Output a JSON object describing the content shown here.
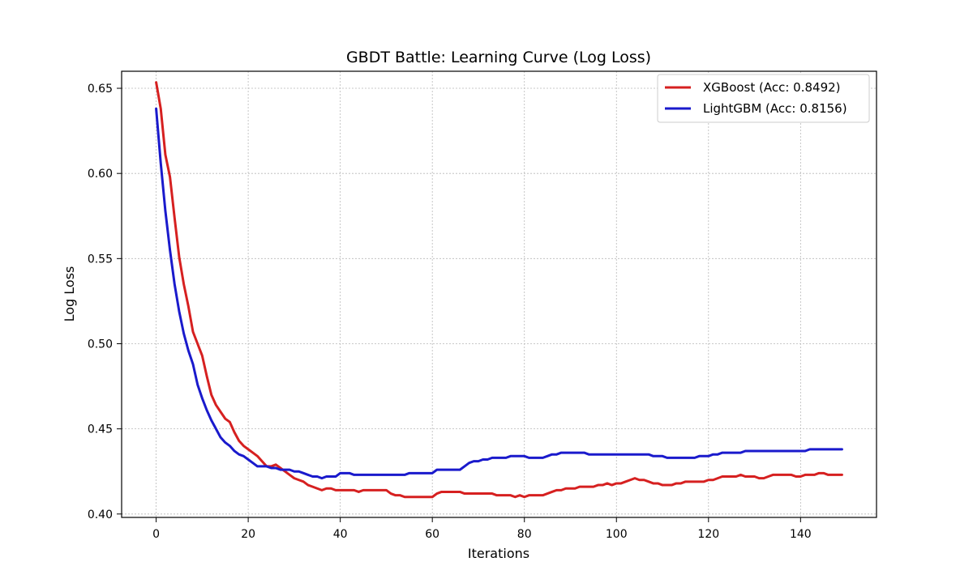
{
  "chart_data": {
    "type": "line",
    "title": "GBDT Battle: Learning Curve (Log Loss)",
    "xlabel": "Iterations",
    "ylabel": "Log Loss",
    "xlim": [
      -7.5,
      156.5
    ],
    "ylim": [
      0.398,
      0.66
    ],
    "xticks": [
      0,
      20,
      40,
      60,
      80,
      100,
      120,
      140
    ],
    "xtick_labels": [
      "0",
      "20",
      "40",
      "60",
      "80",
      "100",
      "120",
      "140"
    ],
    "yticks": [
      0.4,
      0.45,
      0.5,
      0.55,
      0.6,
      0.65
    ],
    "ytick_labels": [
      "0.40",
      "0.45",
      "0.50",
      "0.55",
      "0.60",
      "0.65"
    ],
    "grid": true,
    "legend_position": "top-right",
    "series": [
      {
        "name": "XGBoost (Acc: 0.8492)",
        "color": "#d62020",
        "x": [
          0,
          1,
          2,
          3,
          4,
          5,
          6,
          7,
          8,
          9,
          10,
          11,
          12,
          13,
          14,
          15,
          16,
          17,
          18,
          19,
          20,
          21,
          22,
          23,
          24,
          25,
          26,
          27,
          28,
          29,
          30,
          31,
          32,
          33,
          34,
          35,
          36,
          37,
          38,
          39,
          40,
          41,
          42,
          43,
          44,
          45,
          46,
          47,
          48,
          49,
          50,
          51,
          52,
          53,
          54,
          55,
          56,
          57,
          58,
          59,
          60,
          61,
          62,
          63,
          64,
          65,
          66,
          67,
          68,
          69,
          70,
          71,
          72,
          73,
          74,
          75,
          76,
          77,
          78,
          79,
          80,
          81,
          82,
          83,
          84,
          85,
          86,
          87,
          88,
          89,
          90,
          91,
          92,
          93,
          94,
          95,
          96,
          97,
          98,
          99,
          100,
          101,
          102,
          103,
          104,
          105,
          106,
          107,
          108,
          109,
          110,
          111,
          112,
          113,
          114,
          115,
          116,
          117,
          118,
          119,
          120,
          121,
          122,
          123,
          124,
          125,
          126,
          127,
          128,
          129,
          130,
          131,
          132,
          133,
          134,
          135,
          136,
          137,
          138,
          139,
          140,
          141,
          142,
          143,
          144,
          145,
          146,
          147,
          148,
          149
        ],
        "values": [
          0.6535,
          0.638,
          0.611,
          0.598,
          0.574,
          0.551,
          0.535,
          0.522,
          0.507,
          0.5,
          0.493,
          0.481,
          0.47,
          0.464,
          0.46,
          0.456,
          0.454,
          0.448,
          0.443,
          0.44,
          0.438,
          0.436,
          0.434,
          0.431,
          0.428,
          0.428,
          0.429,
          0.427,
          0.425,
          0.423,
          0.421,
          0.42,
          0.419,
          0.417,
          0.416,
          0.415,
          0.414,
          0.415,
          0.415,
          0.414,
          0.414,
          0.414,
          0.414,
          0.414,
          0.413,
          0.414,
          0.414,
          0.414,
          0.414,
          0.414,
          0.414,
          0.412,
          0.411,
          0.411,
          0.41,
          0.41,
          0.41,
          0.41,
          0.41,
          0.41,
          0.41,
          0.412,
          0.413,
          0.413,
          0.413,
          0.413,
          0.413,
          0.412,
          0.412,
          0.412,
          0.412,
          0.412,
          0.412,
          0.412,
          0.411,
          0.411,
          0.411,
          0.411,
          0.41,
          0.411,
          0.41,
          0.411,
          0.411,
          0.411,
          0.411,
          0.412,
          0.413,
          0.414,
          0.414,
          0.415,
          0.415,
          0.415,
          0.416,
          0.416,
          0.416,
          0.416,
          0.417,
          0.417,
          0.418,
          0.417,
          0.418,
          0.418,
          0.419,
          0.42,
          0.421,
          0.42,
          0.42,
          0.419,
          0.418,
          0.418,
          0.417,
          0.417,
          0.417,
          0.418,
          0.418,
          0.419,
          0.419,
          0.419,
          0.419,
          0.419,
          0.42,
          0.42,
          0.421,
          0.422,
          0.422,
          0.422,
          0.422,
          0.423,
          0.422,
          0.422,
          0.422,
          0.421,
          0.421,
          0.422,
          0.423,
          0.423,
          0.423,
          0.423,
          0.423,
          0.422,
          0.422,
          0.423,
          0.423,
          0.423,
          0.424,
          0.424,
          0.423,
          0.423,
          0.423,
          0.423
        ]
      },
      {
        "name": "LightGBM (Acc: 0.8156)",
        "color": "#1a1acc",
        "x": [
          0,
          1,
          2,
          3,
          4,
          5,
          6,
          7,
          8,
          9,
          10,
          11,
          12,
          13,
          14,
          15,
          16,
          17,
          18,
          19,
          20,
          21,
          22,
          23,
          24,
          25,
          26,
          27,
          28,
          29,
          30,
          31,
          32,
          33,
          34,
          35,
          36,
          37,
          38,
          39,
          40,
          41,
          42,
          43,
          44,
          45,
          46,
          47,
          48,
          49,
          50,
          51,
          52,
          53,
          54,
          55,
          56,
          57,
          58,
          59,
          60,
          61,
          62,
          63,
          64,
          65,
          66,
          67,
          68,
          69,
          70,
          71,
          72,
          73,
          74,
          75,
          76,
          77,
          78,
          79,
          80,
          81,
          82,
          83,
          84,
          85,
          86,
          87,
          88,
          89,
          90,
          91,
          92,
          93,
          94,
          95,
          96,
          97,
          98,
          99,
          100,
          101,
          102,
          103,
          104,
          105,
          106,
          107,
          108,
          109,
          110,
          111,
          112,
          113,
          114,
          115,
          116,
          117,
          118,
          119,
          120,
          121,
          122,
          123,
          124,
          125,
          126,
          127,
          128,
          129,
          130,
          131,
          132,
          133,
          134,
          135,
          136,
          137,
          138,
          139,
          140,
          141,
          142,
          143,
          144,
          145,
          146,
          147,
          148,
          149
        ],
        "values": [
          0.638,
          0.606,
          0.578,
          0.555,
          0.535,
          0.519,
          0.506,
          0.496,
          0.488,
          0.476,
          0.468,
          0.461,
          0.455,
          0.45,
          0.445,
          0.442,
          0.44,
          0.437,
          0.435,
          0.434,
          0.432,
          0.43,
          0.428,
          0.428,
          0.428,
          0.427,
          0.427,
          0.426,
          0.426,
          0.426,
          0.425,
          0.425,
          0.424,
          0.423,
          0.422,
          0.422,
          0.421,
          0.422,
          0.422,
          0.422,
          0.424,
          0.424,
          0.424,
          0.423,
          0.423,
          0.423,
          0.423,
          0.423,
          0.423,
          0.423,
          0.423,
          0.423,
          0.423,
          0.423,
          0.423,
          0.424,
          0.424,
          0.424,
          0.424,
          0.424,
          0.424,
          0.426,
          0.426,
          0.426,
          0.426,
          0.426,
          0.426,
          0.428,
          0.43,
          0.431,
          0.431,
          0.432,
          0.432,
          0.433,
          0.433,
          0.433,
          0.433,
          0.434,
          0.434,
          0.434,
          0.434,
          0.433,
          0.433,
          0.433,
          0.433,
          0.434,
          0.435,
          0.435,
          0.436,
          0.436,
          0.436,
          0.436,
          0.436,
          0.436,
          0.435,
          0.435,
          0.435,
          0.435,
          0.435,
          0.435,
          0.435,
          0.435,
          0.435,
          0.435,
          0.435,
          0.435,
          0.435,
          0.435,
          0.434,
          0.434,
          0.434,
          0.433,
          0.433,
          0.433,
          0.433,
          0.433,
          0.433,
          0.433,
          0.434,
          0.434,
          0.434,
          0.435,
          0.435,
          0.436,
          0.436,
          0.436,
          0.436,
          0.436,
          0.437,
          0.437,
          0.437,
          0.437,
          0.437,
          0.437,
          0.437,
          0.437,
          0.437,
          0.437,
          0.437,
          0.437,
          0.437,
          0.437,
          0.438,
          0.438,
          0.438,
          0.438,
          0.438,
          0.438,
          0.438,
          0.438
        ]
      }
    ]
  }
}
